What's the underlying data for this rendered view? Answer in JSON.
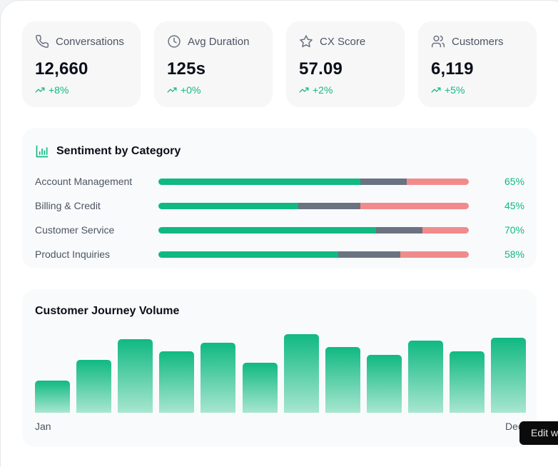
{
  "stats": [
    {
      "icon": "phone-icon",
      "label": "Conversations",
      "value": "12,660",
      "delta": "+8%"
    },
    {
      "icon": "clock-icon",
      "label": "Avg Duration",
      "value": "125s",
      "delta": "+0%"
    },
    {
      "icon": "star-icon",
      "label": "CX Score",
      "value": "57.09",
      "delta": "+2%"
    },
    {
      "icon": "users-icon",
      "label": "Customers",
      "value": "6,119",
      "delta": "+5%"
    }
  ],
  "sentiment": {
    "title": "Sentiment by Category",
    "rows": [
      {
        "label": "Account Management",
        "pct": "65%",
        "positive": 65,
        "neutral": 15,
        "negative": 20
      },
      {
        "label": "Billing & Credit",
        "pct": "45%",
        "positive": 45,
        "neutral": 20,
        "negative": 35
      },
      {
        "label": "Customer Service",
        "pct": "70%",
        "positive": 70,
        "neutral": 15,
        "negative": 15
      },
      {
        "label": "Product Inquiries",
        "pct": "58%",
        "positive": 58,
        "neutral": 20,
        "negative": 22
      }
    ]
  },
  "journey": {
    "title": "Customer Journey Volume",
    "values": [
      40,
      66,
      92,
      77,
      87,
      62,
      98,
      82,
      72,
      90,
      77,
      94
    ],
    "axis_start": "Jan",
    "axis_end": "Dec"
  },
  "edit_button": {
    "label": "Edit with"
  },
  "colors": {
    "accent": "#10b981",
    "neutral": "#6b7280",
    "negative": "#f18b8b"
  }
}
